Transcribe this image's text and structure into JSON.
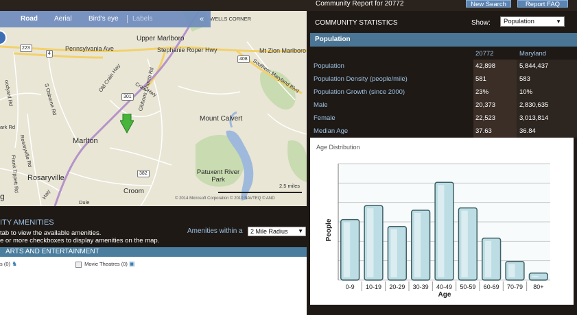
{
  "header": {
    "report_title": "Community Report for 20772",
    "new_search": "New Search",
    "report_faq": "Report FAQ"
  },
  "map": {
    "toolbar": {
      "road": "Road",
      "aerial": "Aerial",
      "birds_eye": "Bird's eye",
      "labels": "Labels",
      "collapse": "«"
    },
    "places": {
      "upper_marlboro": "Upper Marlboro",
      "mount_calvert": "Mount Calvert",
      "marlton": "Marlton",
      "rosaryville": "Rosaryville",
      "croom": "Croom",
      "patuxent_park": "Patuxent River Park",
      "wells_corner": "WELLS CORNER"
    },
    "roads": {
      "pennsylvania_ave": "Pennsylvania Ave",
      "stephanie_roper": "Stephanie Roper Hwy",
      "mt_zion": "Mt Zion Marlboro R",
      "old_crain": "Old Crain Hwy",
      "crain": "Crain Hwy",
      "southern_md": "Southern Maryland Blvd",
      "s_osborne": "S Osborne Rd",
      "rosaryville_rd": "Rosaryville Rd",
      "frank_tippett": "Frank Tippett Rd",
      "woodyard": "oodyard Rd",
      "ark_rd": "ark Rd",
      "gibbons_church": "Gibbons Church Rd",
      "duley": "Dule",
      "hwy_left": "Hwy",
      "g_left": "g"
    },
    "shields": [
      "223",
      "4",
      "301",
      "408",
      "382"
    ],
    "scale": "2.5 miles",
    "copyright": "© 2014 Microsoft Corporation   © 2010 NAVTEQ   © AND"
  },
  "amenities": {
    "title": "ITY AMENITIES",
    "line1": "tab to view the available amenities.",
    "line2": "e or more checkboxes to display amenities on the map.",
    "within_label": "Amenities within a",
    "radius": "2 Mile Radius",
    "arts_label": "ARTS AND ENTERTAINMENT",
    "items": [
      {
        "label": "s (0)"
      },
      {
        "label": "Movie Theatres (0)"
      }
    ]
  },
  "stats": {
    "title": "COMMUNITY STATISTICS",
    "show_label": "Show:",
    "show_value": "Population",
    "section": "Population",
    "col1": "20772",
    "col2": "Maryland",
    "rows": [
      {
        "label": "Population",
        "v1": "42,898",
        "v2": "5,844,437"
      },
      {
        "label": "Population Density (people/mile)",
        "v1": "581",
        "v2": "583"
      },
      {
        "label": "Population Growth (since 2000)",
        "v1": "23%",
        "v2": "10%"
      },
      {
        "label": "Male",
        "v1": "20,373",
        "v2": "2,830,635"
      },
      {
        "label": "Female",
        "v1": "22,523",
        "v2": "3,013,814"
      },
      {
        "label": "Median Age",
        "v1": "37.63",
        "v2": "36.84"
      }
    ]
  },
  "chart_data": {
    "type": "bar",
    "title": "Age Distribution",
    "xlabel": "Age",
    "ylabel": "People",
    "categories": [
      "0-9",
      "10-19",
      "20-29",
      "30-39",
      "40-49",
      "50-59",
      "60-69",
      "70-79",
      "80+"
    ],
    "values": [
      5.2,
      6.4,
      4.6,
      6.0,
      8.4,
      6.2,
      3.6,
      1.6,
      0.6
    ],
    "ylim": [
      0,
      10
    ],
    "grid": true,
    "bar_color": "#bcdde3"
  }
}
